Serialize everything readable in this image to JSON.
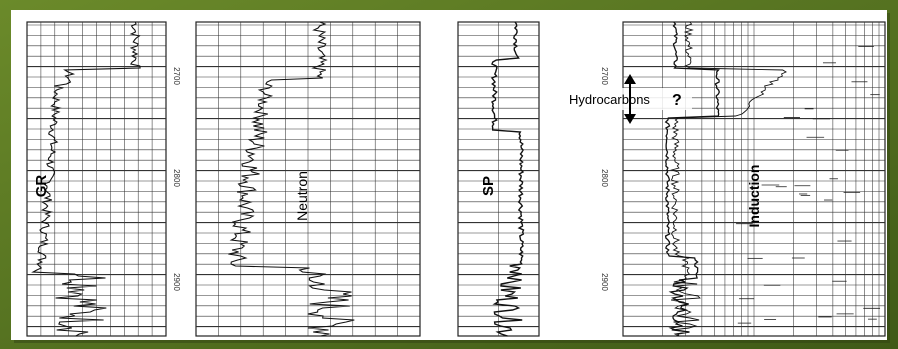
{
  "tracks": [
    {
      "id": "gr",
      "label": "GR"
    },
    {
      "id": "neutron",
      "label": "Neutron"
    },
    {
      "id": "sp",
      "label": "SP"
    },
    {
      "id": "induction",
      "label": "Induction"
    }
  ],
  "depth_labels": [
    "2700",
    "2800",
    "2900"
  ],
  "annotation": {
    "text": "Hydrocarbons",
    "mark": "?",
    "arrow_icon": "double-headed-vertical-arrow"
  },
  "colors": {
    "background": "#4c6b1f",
    "panel": "#ffffff",
    "grid": "#222222",
    "curve": "#111111"
  }
}
